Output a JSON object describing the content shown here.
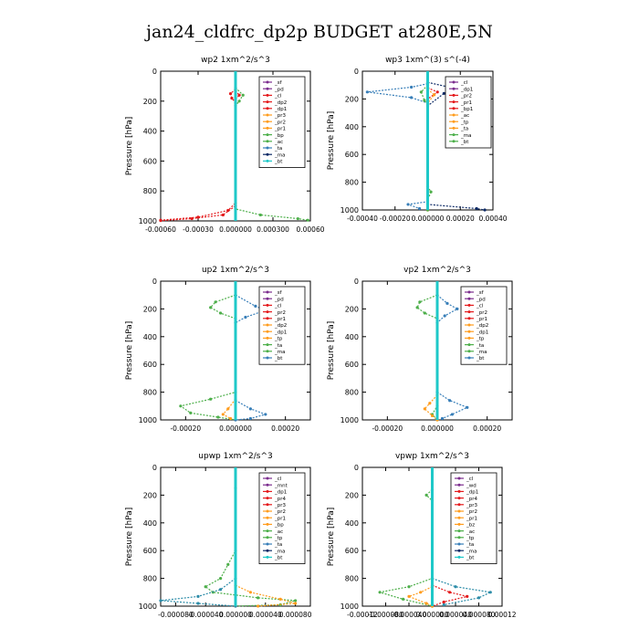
{
  "title": "jan24_cldfrc_dp2p  BUDGET at280E,5N",
  "colors": {
    "sf": "#8b3fb0",
    "pd": "#7a1a6a",
    "cl": "#e0204a",
    "mnt": "#c01090",
    "wd": "#d01a60",
    "pr1": "#f0c020",
    "pr2": "#f0a030",
    "pr3": "#f07818",
    "pr4": "#f0b050",
    "dp1": "#e02020",
    "dp2": "#d81818",
    "bp": "#66cc44",
    "bp1": "#66cc44",
    "ac": "#4cbf4c",
    "tp": "#3c8cd8",
    "ta": "#3070c0",
    "ma": "#102060",
    "bt": "#20c8c8",
    "red": "#e41a1c",
    "green": "#4daf4a",
    "blue": "#377eb8",
    "orange": "#ff9d1e",
    "purple": "#7b2d8e",
    "navy": "#0d2a66",
    "cyan": "#1ec8c8",
    "teal": "#2c8ca8"
  },
  "chart_data": [
    {
      "type": "line",
      "title": "wp2   1xm^2/s^3",
      "ylabel": "Pressure  [hPa]",
      "xlim": [
        -0.0006,
        0.0006
      ],
      "ylim": [
        0,
        1000
      ],
      "xticks": [
        "-0.00060",
        "-0.00030",
        "0.000000",
        "0.000300",
        "0.00060"
      ],
      "yticks": [
        "0",
        "200",
        "400",
        "600",
        "800",
        "1000"
      ],
      "legend": [
        "_sf",
        "_pd",
        "_cl",
        "_dp2",
        "_dp1",
        "_pr3",
        "_pr2",
        "_pr1",
        "_bp",
        "_ac",
        "_ta",
        "_ma",
        "_bt"
      ],
      "series": [
        {
          "name": "_pd",
          "color": "purple",
          "points": [
            [
              0.0,
              0
            ],
            [
              0.0,
              200
            ],
            [
              0.0,
              500
            ],
            [
              0.0,
              800
            ],
            [
              0.0,
              1000
            ]
          ]
        },
        {
          "name": "_cl",
          "color": "red",
          "points": [
            [
              0.0,
              120
            ],
            [
              -4e-05,
              150
            ],
            [
              -3e-05,
              180
            ],
            [
              0.0,
              210
            ],
            [
              0.0,
              880
            ],
            [
              -6e-05,
              930
            ],
            [
              -0.0003,
              975
            ],
            [
              -0.0006,
              995
            ]
          ]
        },
        {
          "name": "_dp1",
          "color": "red",
          "points": [
            [
              0.0,
              130
            ],
            [
              3e-05,
              160
            ],
            [
              0.0,
              190
            ],
            [
              0.0,
              900
            ],
            [
              -0.0001,
              960
            ],
            [
              -0.00035,
              985
            ],
            [
              -0.0006,
              998
            ]
          ]
        },
        {
          "name": "_ac",
          "color": "green",
          "points": [
            [
              0.0,
              110
            ],
            [
              6e-05,
              160
            ],
            [
              3e-05,
              200
            ],
            [
              0.0,
              230
            ],
            [
              0.0,
              920
            ],
            [
              0.0002,
              960
            ],
            [
              0.0005,
              985
            ],
            [
              0.00058,
              995
            ]
          ]
        },
        {
          "name": "_bt",
          "color": "cyan",
          "points": [
            [
              0.0,
              0
            ],
            [
              0.0,
              1000
            ]
          ]
        }
      ]
    },
    {
      "type": "line",
      "title": "wp3   1xm^(3) s^(-4)",
      "ylabel": "Pressure  [hPa]",
      "xlim": [
        -0.0004,
        0.0004
      ],
      "ylim": [
        0,
        1000
      ],
      "xticks": [
        "-0.00040",
        "-0.00020",
        "0.000000",
        "0.00020",
        "0.00040"
      ],
      "yticks": [
        "0",
        "200",
        "400",
        "600",
        "800",
        "1000"
      ],
      "legend": [
        "_cl",
        "_dp1",
        "_pr2",
        "_pr1",
        "_bp1",
        "_ac",
        "_tp",
        "_ta",
        "_ma",
        "_bt"
      ],
      "series": [
        {
          "name": "_ma",
          "color": "navy",
          "points": [
            [
              0.0,
              80
            ],
            [
              0.00015,
              120
            ],
            [
              0.00035,
              140
            ],
            [
              0.0001,
              160
            ],
            [
              0.0,
              250
            ],
            [
              0.0,
              960
            ],
            [
              0.0003,
              990
            ],
            [
              0.00035,
              1000
            ]
          ]
        },
        {
          "name": "_tp",
          "color": "blue",
          "points": [
            [
              0.0,
              90
            ],
            [
              -0.0001,
              115
            ],
            [
              -0.00037,
              150
            ],
            [
              -0.0001,
              190
            ],
            [
              0.0,
              230
            ],
            [
              0.0,
              940
            ],
            [
              -0.00012,
              960
            ],
            [
              -5e-05,
              990
            ]
          ]
        },
        {
          "name": "_dp1",
          "color": "red",
          "points": [
            [
              0.0,
              120
            ],
            [
              6e-05,
              150
            ],
            [
              0.0,
              200
            ],
            [
              0.0,
              1000
            ]
          ]
        },
        {
          "name": "_pr2",
          "color": "orange",
          "points": [
            [
              0.0,
              130
            ],
            [
              4e-05,
              170
            ],
            [
              0.0,
              230
            ],
            [
              0.0,
              1000
            ]
          ]
        },
        {
          "name": "_ac",
          "color": "green",
          "points": [
            [
              0.0,
              100
            ],
            [
              -4e-05,
              150
            ],
            [
              -2e-05,
              210
            ],
            [
              0.0,
              240
            ],
            [
              0.0,
              830
            ],
            [
              2e-05,
              870
            ],
            [
              0.0,
              930
            ],
            [
              0.0,
              1000
            ]
          ]
        },
        {
          "name": "_bt",
          "color": "cyan",
          "points": [
            [
              0.0,
              0
            ],
            [
              0.0,
              1000
            ]
          ]
        }
      ]
    },
    {
      "type": "line",
      "title": "up2   1xm^2/s^3",
      "ylabel": "Pressure  [hPa]",
      "xlim": [
        -0.0003,
        0.0003
      ],
      "ylim": [
        0,
        1000
      ],
      "xticks": [
        "-0.00020",
        "0.000000",
        "0.00020"
      ],
      "yticks": [
        "0",
        "200",
        "400",
        "600",
        "800",
        "1000"
      ],
      "legend": [
        "_sf",
        "_pd",
        "_cl",
        "_pr2",
        "_pr1",
        "_dp2",
        "_dp1",
        "_tp",
        "_ta",
        "_ma",
        "_bt"
      ],
      "series": [
        {
          "name": "_bp",
          "color": "green",
          "points": [
            [
              0.0,
              100
            ],
            [
              -8e-05,
              150
            ],
            [
              -0.0001,
              190
            ],
            [
              -6e-05,
              230
            ],
            [
              0.0,
              270
            ],
            [
              0.0,
              800
            ],
            [
              -0.0001,
              850
            ],
            [
              -0.00022,
              900
            ],
            [
              -0.00018,
              950
            ],
            [
              -7e-05,
              980
            ],
            [
              0.0,
              1000
            ]
          ]
        },
        {
          "name": "_tp",
          "color": "blue",
          "points": [
            [
              0.0,
              100
            ],
            [
              8e-05,
              180
            ],
            [
              0.00012,
              210
            ],
            [
              4e-05,
              260
            ],
            [
              0.0,
              300
            ],
            [
              0.0,
              860
            ],
            [
              6e-05,
              920
            ],
            [
              0.00012,
              960
            ],
            [
              6e-05,
              990
            ],
            [
              0.0,
              1000
            ]
          ]
        },
        {
          "name": "_pr1",
          "color": "orange",
          "points": [
            [
              0.0,
              850
            ],
            [
              -3e-05,
              920
            ],
            [
              -5e-05,
              960
            ],
            [
              -2e-05,
              990
            ]
          ]
        },
        {
          "name": "_dp1",
          "color": "red",
          "points": [
            [
              0.0,
              0
            ],
            [
              0.0,
              1000
            ]
          ]
        },
        {
          "name": "_bt",
          "color": "cyan",
          "points": [
            [
              0.0,
              0
            ],
            [
              0.0,
              1000
            ]
          ]
        }
      ]
    },
    {
      "type": "line",
      "title": "vp2   1xm^2/s^3",
      "ylabel": "Pressure  [hPa]",
      "xlim": [
        -0.0003,
        0.0003
      ],
      "ylim": [
        0,
        1000
      ],
      "xticks": [
        "-0.00020",
        "0.000000",
        "0.00020"
      ],
      "yticks": [
        "0",
        "200",
        "400",
        "600",
        "800",
        "1000"
      ],
      "legend": [
        "_sf",
        "_pd",
        "_cl",
        "_pr2",
        "_pr1",
        "_dp2",
        "_dp1",
        "_tp",
        "_ta",
        "_ma",
        "_bt"
      ],
      "series": [
        {
          "name": "_bp",
          "color": "green",
          "points": [
            [
              0.0,
              100
            ],
            [
              -7e-05,
              150
            ],
            [
              -8e-05,
              190
            ],
            [
              -5e-05,
              230
            ],
            [
              0.0,
              270
            ],
            [
              0.0,
              900
            ],
            [
              -2e-05,
              960
            ],
            [
              0.0,
              1000
            ]
          ]
        },
        {
          "name": "_tp",
          "color": "blue",
          "points": [
            [
              0.0,
              100
            ],
            [
              4e-05,
              160
            ],
            [
              8e-05,
              200
            ],
            [
              3e-05,
              250
            ],
            [
              0.0,
              300
            ],
            [
              0.0,
              800
            ],
            [
              5e-05,
              860
            ],
            [
              0.00012,
              910
            ],
            [
              6e-05,
              960
            ],
            [
              2e-05,
              990
            ]
          ]
        },
        {
          "name": "_pr1",
          "color": "orange",
          "points": [
            [
              0.0,
              820
            ],
            [
              -3e-05,
              880
            ],
            [
              -5e-05,
              920
            ],
            [
              -2e-05,
              970
            ],
            [
              0.0,
              1000
            ]
          ]
        },
        {
          "name": "_dp1",
          "color": "red",
          "points": [
            [
              0.0,
              0
            ],
            [
              0.0,
              1000
            ]
          ]
        },
        {
          "name": "_bt",
          "color": "cyan",
          "points": [
            [
              0.0,
              0
            ],
            [
              0.0,
              1000
            ]
          ]
        }
      ]
    },
    {
      "type": "line",
      "title": "upwp   1xm^2/s^3",
      "ylabel": "Pressure  [hPa]",
      "xlim": [
        -0.0001,
        0.0001
      ],
      "ylim": [
        0,
        1000
      ],
      "xticks": [
        "-0.000080",
        "-0.000040",
        "0.000000",
        "0.000040",
        "0.000080"
      ],
      "yticks": [
        "0",
        "200",
        "400",
        "600",
        "800",
        "1000"
      ],
      "legend": [
        "_cl",
        "_mnt",
        "_dp1",
        "_pr4",
        "_pr3",
        "_pr2",
        "_pr1",
        "_bp",
        "_ac",
        "_tp",
        "_ta",
        "_ma",
        "_bt"
      ],
      "series": [
        {
          "name": "_bp",
          "color": "green",
          "points": [
            [
              0.0,
              150
            ],
            [
              0.0,
              600
            ],
            [
              -1e-05,
              700
            ],
            [
              -2e-05,
              800
            ],
            [
              -4e-05,
              860
            ],
            [
              -3e-05,
              900
            ],
            [
              0.0,
              920
            ],
            [
              3e-05,
              940
            ],
            [
              8e-05,
              960
            ],
            [
              6e-05,
              990
            ],
            [
              0.0,
              1000
            ]
          ]
        },
        {
          "name": "_ma",
          "color": "teal",
          "points": [
            [
              0.0,
              800
            ],
            [
              -2e-05,
              880
            ],
            [
              -5e-05,
              930
            ],
            [
              -0.0001,
              960
            ],
            [
              -5e-05,
              980
            ],
            [
              0.0,
              1000
            ]
          ]
        },
        {
          "name": "_pr1",
          "color": "orange",
          "points": [
            [
              0.0,
              850
            ],
            [
              2e-05,
              900
            ],
            [
              6e-05,
              950
            ],
            [
              8e-05,
              980
            ],
            [
              3e-05,
              1000
            ]
          ]
        },
        {
          "name": "_cl",
          "color": "purple",
          "points": [
            [
              0.0,
              0
            ],
            [
              0.0,
              1000
            ]
          ]
        },
        {
          "name": "_bt",
          "color": "cyan",
          "points": [
            [
              0.0,
              0
            ],
            [
              0.0,
              1000
            ]
          ]
        }
      ]
    },
    {
      "type": "line",
      "title": "vpwp   1xm^2/s^3",
      "ylabel": "Pressure  [hPa]",
      "xlim": [
        -0.00012,
        0.00012
      ],
      "ylim": [
        0,
        1000
      ],
      "xticks": [
        "-0.00012",
        "-0.000080",
        "-0.000040",
        "0.000000",
        "0.000040",
        "0.000080",
        "0.00012"
      ],
      "yticks": [
        "0",
        "200",
        "400",
        "600",
        "800",
        "1000"
      ],
      "legend": [
        "_cl",
        "_wd",
        "_dp1",
        "_pr4",
        "_pr3",
        "_pr2",
        "_pr1",
        "_bz",
        "_ac",
        "_tp",
        "_ta",
        "_ma",
        "_bt"
      ],
      "series": [
        {
          "name": "_bp",
          "color": "green",
          "points": [
            [
              0.0,
              160
            ],
            [
              -1e-05,
              200
            ],
            [
              0.0,
              240
            ],
            [
              0.0,
              800
            ],
            [
              -4e-05,
              860
            ],
            [
              -9e-05,
              900
            ],
            [
              -5e-05,
              950
            ],
            [
              0.0,
              1000
            ]
          ]
        },
        {
          "name": "_ta",
          "color": "teal",
          "points": [
            [
              0.0,
              800
            ],
            [
              4e-05,
              860
            ],
            [
              0.0001,
              900
            ],
            [
              8e-05,
              940
            ],
            [
              2e-05,
              990
            ]
          ]
        },
        {
          "name": "_dp1",
          "color": "red",
          "points": [
            [
              0.0,
              850
            ],
            [
              3e-05,
              900
            ],
            [
              6e-05,
              930
            ],
            [
              2e-05,
              970
            ],
            [
              0.0,
              1000
            ]
          ]
        },
        {
          "name": "_pr1",
          "color": "orange",
          "points": [
            [
              0.0,
              860
            ],
            [
              -2e-05,
              900
            ],
            [
              -4e-05,
              930
            ],
            [
              -1e-05,
              980
            ],
            [
              0.0,
              1000
            ]
          ]
        },
        {
          "name": "_cl",
          "color": "purple",
          "points": [
            [
              0.0,
              0
            ],
            [
              0.0,
              1000
            ]
          ]
        },
        {
          "name": "_bt",
          "color": "cyan",
          "points": [
            [
              0.0,
              0
            ],
            [
              0.0,
              1000
            ]
          ]
        }
      ]
    }
  ]
}
